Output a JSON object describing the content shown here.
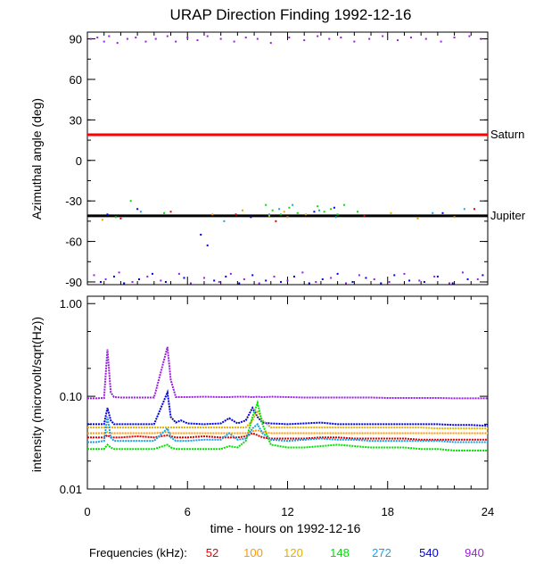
{
  "chart_data": [
    {
      "type": "scatter",
      "title": "URAP Direction Finding  1992-12-16",
      "ylabel": "Azimuthal angle (deg)",
      "xlim": [
        0,
        24
      ],
      "ylim": [
        -92,
        95
      ],
      "yticks": [
        90,
        60,
        30,
        0,
        -30,
        -60,
        -90
      ],
      "xticks": [
        0,
        6,
        12,
        18,
        24
      ],
      "grid": false,
      "reference_lines": [
        {
          "label": "Saturn",
          "y": 19,
          "color": "#ff0000"
        },
        {
          "label": "Jupiter",
          "y": -41,
          "color": "#000000"
        }
      ],
      "series": [
        {
          "freq": "940",
          "color": "#9a1fdc",
          "points": [
            [
              0.2,
              90
            ],
            [
              0.6,
              91
            ],
            [
              1.0,
              88
            ],
            [
              1.3,
              92
            ],
            [
              1.8,
              87
            ],
            [
              2.4,
              90
            ],
            [
              2.9,
              91
            ],
            [
              3.5,
              88
            ],
            [
              4.1,
              90
            ],
            [
              4.8,
              92
            ],
            [
              5.3,
              88
            ],
            [
              6.0,
              91
            ],
            [
              6.6,
              89
            ],
            [
              7.2,
              92
            ],
            [
              8.0,
              90
            ],
            [
              8.8,
              88
            ],
            [
              9.5,
              91
            ],
            [
              10.2,
              90
            ],
            [
              11.0,
              87
            ],
            [
              12.1,
              91
            ],
            [
              13.0,
              89
            ],
            [
              13.8,
              92
            ],
            [
              14.5,
              90
            ],
            [
              15.2,
              91
            ],
            [
              16.0,
              88
            ],
            [
              16.9,
              90
            ],
            [
              17.7,
              92
            ],
            [
              18.6,
              89
            ],
            [
              19.4,
              91
            ],
            [
              20.3,
              90
            ],
            [
              21.2,
              88
            ],
            [
              22.0,
              91
            ],
            [
              22.9,
              92
            ],
            [
              23.6,
              90
            ],
            [
              0.4,
              -85
            ],
            [
              1.1,
              -88
            ],
            [
              1.9,
              -83
            ],
            [
              2.7,
              -90
            ],
            [
              3.6,
              -86
            ],
            [
              4.4,
              -89
            ],
            [
              5.5,
              -84
            ],
            [
              6.2,
              -91
            ],
            [
              7.0,
              -87
            ],
            [
              7.9,
              -90
            ],
            [
              8.6,
              -84
            ],
            [
              9.4,
              -88
            ],
            [
              10.3,
              -91
            ],
            [
              11.2,
              -86
            ],
            [
              12.0,
              -89
            ],
            [
              12.9,
              -83
            ],
            [
              13.7,
              -90
            ],
            [
              14.6,
              -87
            ],
            [
              15.5,
              -91
            ],
            [
              16.3,
              -85
            ],
            [
              17.2,
              -88
            ],
            [
              18.1,
              -90
            ],
            [
              19.0,
              -84
            ],
            [
              19.9,
              -89
            ],
            [
              20.8,
              -86
            ],
            [
              21.7,
              -91
            ],
            [
              22.5,
              -83
            ],
            [
              23.4,
              -88
            ]
          ]
        },
        {
          "freq": "540",
          "color": "#0000e0",
          "points": [
            [
              0.8,
              -90
            ],
            [
              1.6,
              -86
            ],
            [
              2.2,
              -91
            ],
            [
              3.1,
              -88
            ],
            [
              3.9,
              -84
            ],
            [
              4.7,
              -90
            ],
            [
              5.8,
              -87
            ],
            [
              6.8,
              -55
            ],
            [
              7.2,
              -63
            ],
            [
              7.6,
              -89
            ],
            [
              8.3,
              -86
            ],
            [
              9.1,
              -91
            ],
            [
              9.9,
              -85
            ],
            [
              10.7,
              -89
            ],
            [
              11.6,
              -90
            ],
            [
              12.4,
              -86
            ],
            [
              13.3,
              -91
            ],
            [
              14.1,
              -88
            ],
            [
              15.0,
              -84
            ],
            [
              15.9,
              -90
            ],
            [
              16.7,
              -87
            ],
            [
              17.6,
              -91
            ],
            [
              18.4,
              -85
            ],
            [
              19.3,
              -89
            ],
            [
              20.2,
              -90
            ],
            [
              21.0,
              -86
            ],
            [
              21.9,
              -91
            ],
            [
              22.8,
              -88
            ],
            [
              23.7,
              -85
            ],
            [
              1.2,
              -40
            ],
            [
              3.0,
              -36
            ],
            [
              9.8,
              -42
            ],
            [
              13.6,
              -38
            ],
            [
              14.8,
              -35
            ],
            [
              21.3,
              -39
            ]
          ]
        },
        {
          "freq": "272",
          "color": "#1aa0e6",
          "points": [
            [
              3.2,
              -38
            ],
            [
              8.2,
              -45
            ],
            [
              10.9,
              -40
            ],
            [
              11.5,
              -36
            ],
            [
              12.3,
              -33
            ],
            [
              13.9,
              -37
            ],
            [
              14.9,
              -42
            ],
            [
              20.7,
              -39
            ],
            [
              22.6,
              -36
            ]
          ]
        },
        {
          "freq": "148",
          "color": "#00e000",
          "points": [
            [
              1.7,
              -42
            ],
            [
              4.6,
              -39
            ],
            [
              10.7,
              -33
            ],
            [
              11.1,
              -37
            ],
            [
              11.6,
              -40
            ],
            [
              12.1,
              -35
            ],
            [
              12.6,
              -39
            ],
            [
              13.8,
              -34
            ],
            [
              14.2,
              -38
            ],
            [
              14.6,
              -36
            ],
            [
              15.0,
              -40
            ],
            [
              15.4,
              -33
            ],
            [
              16.2,
              -38
            ],
            [
              2.6,
              -30
            ]
          ]
        },
        {
          "freq": "120",
          "color": "#e0b000",
          "points": [
            [
              9.3,
              -37
            ],
            [
              10.9,
              -41
            ],
            [
              11.8,
              -38
            ],
            [
              13.1,
              -40
            ],
            [
              18.2,
              -39
            ],
            [
              22.0,
              -42
            ]
          ]
        },
        {
          "freq": "100",
          "color": "#ff9900",
          "points": [
            [
              0.9,
              -44
            ],
            [
              7.5,
              -40
            ],
            [
              12.0,
              -42
            ],
            [
              19.8,
              -43
            ]
          ]
        },
        {
          "freq": "52",
          "color": "#e00000",
          "points": [
            [
              2.0,
              -43
            ],
            [
              5.0,
              -38
            ],
            [
              8.9,
              -40
            ],
            [
              11.3,
              -45
            ],
            [
              16.6,
              -41
            ],
            [
              23.2,
              -36
            ]
          ]
        }
      ]
    },
    {
      "type": "line",
      "ylabel": "intensity (microvolt/sqrt(Hz))",
      "xlabel": "time - hours on 1992-12-16",
      "xlim": [
        0,
        24
      ],
      "ylim": [
        0.01,
        1.2
      ],
      "yscale": "log",
      "yticks": [
        "1.00",
        "0.10",
        "0.01"
      ],
      "xticks": [
        "0",
        "6",
        "12",
        "18",
        "24"
      ],
      "grid": false,
      "x": [
        0,
        0.5,
        1,
        1.2,
        1.4,
        1.6,
        2,
        3,
        4,
        4.8,
        5.0,
        5.3,
        5.6,
        6,
        7,
        8,
        8.5,
        9,
        9.5,
        9.9,
        10.2,
        10.5,
        11,
        12,
        13,
        14,
        15,
        16,
        17,
        18,
        19,
        20,
        21,
        22,
        23,
        24
      ],
      "series": [
        {
          "freq": "940",
          "color": "#9a1fdc",
          "values": [
            0.095,
            0.095,
            0.096,
            0.32,
            0.11,
            0.098,
            0.097,
            0.097,
            0.097,
            0.34,
            0.15,
            0.098,
            0.098,
            0.098,
            0.099,
            0.098,
            0.098,
            0.099,
            0.099,
            0.098,
            0.099,
            0.098,
            0.099,
            0.098,
            0.097,
            0.097,
            0.097,
            0.097,
            0.097,
            0.096,
            0.096,
            0.096,
            0.096,
            0.095,
            0.095,
            0.095
          ]
        },
        {
          "freq": "540",
          "color": "#0000e0",
          "values": [
            0.05,
            0.05,
            0.05,
            0.075,
            0.055,
            0.05,
            0.05,
            0.05,
            0.05,
            0.11,
            0.06,
            0.052,
            0.055,
            0.051,
            0.05,
            0.051,
            0.058,
            0.051,
            0.055,
            0.075,
            0.06,
            0.052,
            0.051,
            0.05,
            0.051,
            0.052,
            0.05,
            0.05,
            0.05,
            0.05,
            0.05,
            0.05,
            0.05,
            0.049,
            0.049,
            0.048
          ]
        },
        {
          "freq": "120",
          "color": "#e0b000",
          "values": [
            0.046,
            0.046,
            0.046,
            0.046,
            0.046,
            0.046,
            0.046,
            0.046,
            0.046,
            0.046,
            0.046,
            0.046,
            0.046,
            0.046,
            0.046,
            0.046,
            0.046,
            0.046,
            0.046,
            0.055,
            0.07,
            0.055,
            0.046,
            0.046,
            0.046,
            0.046,
            0.046,
            0.046,
            0.046,
            0.046,
            0.046,
            0.046,
            0.045,
            0.045,
            0.045,
            0.045
          ]
        },
        {
          "freq": "148",
          "color": "#00e000",
          "values": [
            0.027,
            0.027,
            0.027,
            0.03,
            0.028,
            0.027,
            0.027,
            0.027,
            0.027,
            0.03,
            0.028,
            0.027,
            0.027,
            0.027,
            0.027,
            0.027,
            0.029,
            0.028,
            0.033,
            0.06,
            0.085,
            0.05,
            0.03,
            0.028,
            0.028,
            0.029,
            0.03,
            0.029,
            0.028,
            0.028,
            0.028,
            0.027,
            0.027,
            0.026,
            0.026,
            0.026
          ]
        },
        {
          "freq": "100",
          "color": "#ff9900",
          "values": [
            0.04,
            0.04,
            0.04,
            0.041,
            0.04,
            0.04,
            0.04,
            0.04,
            0.04,
            0.041,
            0.04,
            0.04,
            0.04,
            0.04,
            0.04,
            0.04,
            0.04,
            0.04,
            0.04,
            0.042,
            0.043,
            0.041,
            0.04,
            0.04,
            0.04,
            0.04,
            0.04,
            0.04,
            0.04,
            0.04,
            0.04,
            0.04,
            0.04,
            0.04,
            0.04,
            0.04
          ]
        },
        {
          "freq": "52",
          "color": "#e00000",
          "values": [
            0.036,
            0.036,
            0.036,
            0.038,
            0.036,
            0.036,
            0.036,
            0.037,
            0.036,
            0.038,
            0.037,
            0.036,
            0.036,
            0.036,
            0.037,
            0.036,
            0.036,
            0.036,
            0.037,
            0.04,
            0.038,
            0.036,
            0.035,
            0.035,
            0.035,
            0.036,
            0.036,
            0.035,
            0.035,
            0.035,
            0.035,
            0.034,
            0.034,
            0.034,
            0.034,
            0.034
          ]
        },
        {
          "freq": "272",
          "color": "#1aa0e6",
          "values": [
            0.032,
            0.032,
            0.033,
            0.06,
            0.036,
            0.033,
            0.033,
            0.033,
            0.033,
            0.045,
            0.036,
            0.033,
            0.033,
            0.033,
            0.034,
            0.034,
            0.04,
            0.034,
            0.035,
            0.045,
            0.05,
            0.04,
            0.034,
            0.033,
            0.034,
            0.035,
            0.034,
            0.034,
            0.033,
            0.033,
            0.033,
            0.033,
            0.033,
            0.032,
            0.032,
            0.032
          ]
        }
      ]
    }
  ],
  "legend": {
    "label": "Frequencies (kHz):",
    "items": [
      {
        "text": "52",
        "color": "#e00000"
      },
      {
        "text": "100",
        "color": "#ff9900"
      },
      {
        "text": "120",
        "color": "#e0b000"
      },
      {
        "text": "148",
        "color": "#00e000"
      },
      {
        "text": "272",
        "color": "#1aa0e6"
      },
      {
        "text": "540",
        "color": "#0000e0"
      },
      {
        "text": "940",
        "color": "#9a1fdc"
      }
    ]
  }
}
